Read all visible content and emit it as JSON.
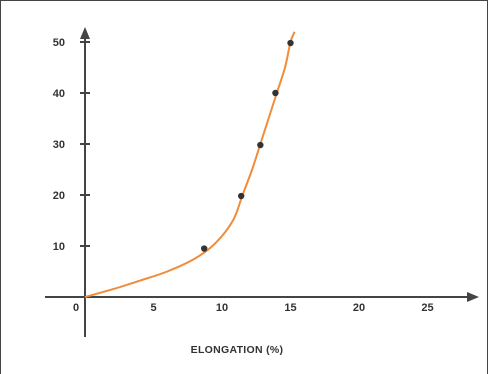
{
  "chart_data": {
    "type": "line",
    "title": "",
    "xlabel": "ELONGATION (%)",
    "ylabel": "",
    "xlim": [
      0,
      27
    ],
    "ylim": [
      0,
      53
    ],
    "x_ticks": [
      0,
      5,
      10,
      15,
      20,
      25
    ],
    "y_ticks": [
      10,
      20,
      30,
      40,
      50
    ],
    "x_tick_labels": [
      "0",
      "5",
      "10",
      "15",
      "20",
      "25"
    ],
    "y_tick_labels": [
      "10",
      "20",
      "30",
      "40",
      "50"
    ],
    "grid": false,
    "series": [
      {
        "color": "#f08c3a",
        "curve": [
          [
            0,
            0
          ],
          [
            2,
            1.5
          ],
          [
            4,
            3.2
          ],
          [
            6,
            5
          ],
          [
            8,
            7.5
          ],
          [
            9.5,
            10.5
          ],
          [
            10.8,
            15
          ],
          [
            11.5,
            20
          ],
          [
            12.2,
            25
          ],
          [
            12.8,
            30
          ],
          [
            13.4,
            35
          ],
          [
            14.0,
            40
          ],
          [
            14.6,
            45
          ],
          [
            15.0,
            50
          ],
          [
            15.3,
            52
          ]
        ],
        "points": [
          [
            8.7,
            9.5
          ],
          [
            11.4,
            19.8
          ],
          [
            12.8,
            29.8
          ],
          [
            13.9,
            40
          ],
          [
            15.0,
            49.8
          ]
        ]
      }
    ],
    "marker_color": "#333333"
  }
}
